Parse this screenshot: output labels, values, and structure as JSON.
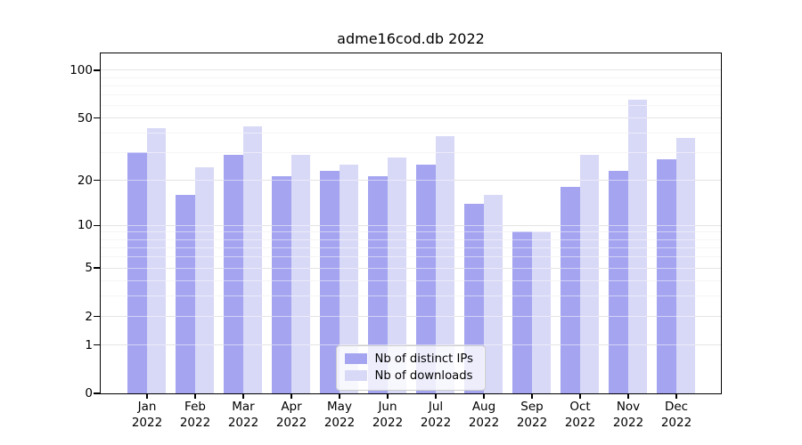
{
  "title": "adme16cod.db 2022",
  "chart_data": {
    "type": "bar",
    "title": "adme16cod.db 2022",
    "categories": [
      "Jan",
      "Feb",
      "Mar",
      "Apr",
      "May",
      "Jun",
      "Jul",
      "Aug",
      "Sep",
      "Oct",
      "Nov",
      "Dec"
    ],
    "x_tick_year": "2022",
    "series": [
      {
        "name": "Nb of distinct IPs",
        "color": "#a4a4f0",
        "values": [
          30,
          16,
          29,
          21,
          23,
          21,
          25,
          14,
          9,
          18,
          23,
          27
        ]
      },
      {
        "name": "Nb of downloads",
        "color": "#d8d8f7",
        "values": [
          43,
          24,
          44,
          29,
          25,
          28,
          38,
          16,
          9,
          29,
          65,
          37
        ]
      }
    ],
    "y_scale": "log10(value+1)",
    "y_ticks": [
      100,
      50,
      20,
      10,
      5,
      2,
      1,
      0
    ],
    "y_minor_gridlines": [
      3,
      4,
      6,
      7,
      8,
      9,
      30,
      40,
      60,
      70,
      80,
      90
    ],
    "ylim": [
      0,
      127.5
    ],
    "grid": true,
    "legend_position": "lower center",
    "colors": {
      "distinct_ips_bar": "#a4a4f0",
      "downloads_bar": "#d8d8f7",
      "major_grid": "#c9c9c9",
      "minor_grid": "#eaeaea",
      "axis": "#000000",
      "legend_border": "#cccccc"
    }
  }
}
